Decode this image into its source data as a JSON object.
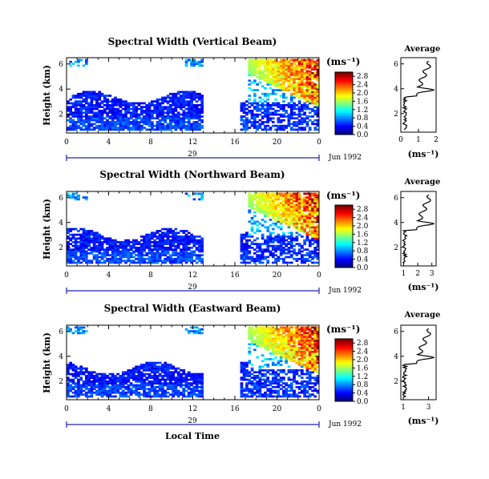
{
  "labels": {
    "height_axis": "Height (km)",
    "units": "(ms⁻¹)",
    "average_title": "Average",
    "date": "Jun 1992",
    "day": "29",
    "xlabel": "Local Time"
  },
  "chart_data": [
    {
      "type": "heatmap",
      "title": "Spectral Width (Vertical Beam)",
      "ylabel": "Height (km)",
      "xlabel": "Local Time",
      "xticks": [
        "0",
        "4",
        "8",
        "12",
        "16",
        "20",
        "0"
      ],
      "xlim": [
        0,
        24
      ],
      "ylim": [
        0.5,
        6.5
      ],
      "yticks": [
        "2",
        "4",
        "6"
      ],
      "gap_hours": [
        13,
        16.3
      ],
      "colorbar": {
        "ticks": [
          "0.0",
          "0.4",
          "0.8",
          "1.2",
          "1.6",
          "2.0",
          "2.4",
          "2.8"
        ],
        "range": [
          0,
          3.0
        ],
        "unit": "(ms⁻¹)"
      },
      "average_profile": {
        "xlim": [
          0,
          2
        ],
        "xticks": [
          "0",
          "1",
          "2"
        ]
      }
    },
    {
      "type": "heatmap",
      "title": "Spectral Width (Northward Beam)",
      "ylabel": "Height (km)",
      "xlabel": "Local Time",
      "xticks": [
        "0",
        "4",
        "8",
        "12",
        "16",
        "20",
        "0"
      ],
      "xlim": [
        0,
        24
      ],
      "ylim": [
        0.5,
        6.5
      ],
      "yticks": [
        "2",
        "4",
        "6"
      ],
      "gap_hours": [
        13,
        16.3
      ],
      "colorbar": {
        "ticks": [
          "0.0",
          "0.4",
          "0.8",
          "1.2",
          "1.6",
          "2.0",
          "2.4",
          "2.8"
        ],
        "range": [
          0,
          3.0
        ],
        "unit": "(ms⁻¹)"
      },
      "average_profile": {
        "xlim": [
          0.8,
          3.3
        ],
        "xticks": [
          "1",
          "2",
          "3"
        ]
      }
    },
    {
      "type": "heatmap",
      "title": "Spectral Width (Eastward Beam)",
      "ylabel": "Height (km)",
      "xlabel": "Local Time",
      "xticks": [
        "0",
        "4",
        "8",
        "12",
        "16",
        "20",
        "0"
      ],
      "xlim": [
        0,
        24
      ],
      "ylim": [
        0.5,
        6.5
      ],
      "yticks": [
        "2",
        "4",
        "6"
      ],
      "gap_hours": [
        13,
        16.3
      ],
      "colorbar": {
        "ticks": [
          "0.0",
          "0.4",
          "0.8",
          "1.2",
          "1.6",
          "2.0",
          "2.4",
          "2.8"
        ],
        "range": [
          0,
          3.0
        ],
        "unit": "(ms⁻¹)"
      },
      "average_profile": {
        "xlim": [
          0.8,
          3.6
        ],
        "xticks": [
          "1",
          "3"
        ]
      }
    }
  ]
}
